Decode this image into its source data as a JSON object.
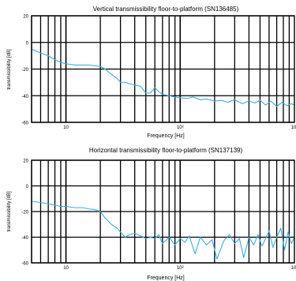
{
  "chart_data": [
    {
      "type": "line",
      "title": "Vertical transmissibility floor-to-platform (SN136485)",
      "xlabel": "Frequency [Hz]",
      "ylabel": "transmissibility [dB]",
      "x_scale": "log",
      "xlim": [
        5,
        1000
      ],
      "ylim": [
        -60,
        20
      ],
      "x_ticks": [
        10,
        100,
        1000
      ],
      "x_tick_labels": [
        "10",
        "10²",
        "10³"
      ],
      "y_ticks": [
        20,
        0,
        -20,
        -40,
        -60
      ],
      "y_tick_labels": [
        "20",
        "0",
        "-20",
        "-40",
        "-60"
      ],
      "grid": true,
      "series_color": "#3aaee0",
      "series": [
        {
          "x": [
            5,
            6,
            7,
            8,
            9,
            10,
            12,
            14,
            16,
            18,
            20,
            22,
            25,
            28,
            30,
            33,
            36,
            40,
            45,
            50,
            55,
            60,
            65,
            70,
            80,
            90,
            100,
            115,
            130,
            150,
            170,
            200,
            230,
            260,
            300,
            350,
            400,
            450,
            500,
            560,
            620,
            700,
            780,
            860,
            940,
            1000
          ],
          "y": [
            -5,
            -8,
            -10,
            -13,
            -15,
            -16,
            -17,
            -17,
            -17,
            -17.5,
            -18,
            -20,
            -24,
            -27,
            -30,
            -30,
            -31,
            -32,
            -33,
            -38,
            -38,
            -34,
            -37,
            -39,
            -40,
            -41,
            -41.5,
            -42,
            -41,
            -43,
            -42.5,
            -44,
            -43.5,
            -45,
            -43,
            -46,
            -44,
            -45.5,
            -43.5,
            -47,
            -44,
            -48,
            -45,
            -47.5,
            -46,
            -47
          ]
        }
      ]
    },
    {
      "type": "line",
      "title": "Horizontal transmissibility floor-to-platform (SN137139)",
      "xlabel": "Frequency [Hz]",
      "ylabel": "transmissibility [dB]",
      "x_scale": "log",
      "xlim": [
        5,
        1000
      ],
      "ylim": [
        -60,
        20
      ],
      "x_ticks": [
        10,
        100,
        1000
      ],
      "x_tick_labels": [
        "10",
        "10²",
        "10³"
      ],
      "y_ticks": [
        20,
        0,
        -20,
        -40,
        -60
      ],
      "y_tick_labels": [
        "20",
        "0",
        "-20",
        "-40",
        "-60"
      ],
      "grid": true,
      "series_color": "#3aaee0",
      "series": [
        {
          "x": [
            5,
            6,
            7,
            8,
            9,
            10,
            12,
            14,
            16,
            18,
            20,
            22,
            25,
            28,
            30,
            33,
            36,
            40,
            45,
            50,
            55,
            60,
            65,
            70,
            80,
            90,
            100,
            110,
            120,
            135,
            150,
            170,
            190,
            210,
            240,
            270,
            300,
            330,
            360,
            400,
            440,
            480,
            520,
            560,
            600,
            650,
            700,
            760,
            820,
            880,
            940,
            1000
          ],
          "y": [
            -12,
            -13,
            -14,
            -15,
            -16,
            -16,
            -17,
            -17,
            -18,
            -18.5,
            -20,
            -25,
            -30,
            -33,
            -36,
            -40,
            -38,
            -37,
            -39,
            -41,
            -40,
            -41,
            -38,
            -45,
            -40,
            -46,
            -41,
            -44,
            -39,
            -53,
            -40,
            -46,
            -42,
            -57,
            -43,
            -38,
            -45,
            -41,
            -56,
            -40,
            -46,
            -38,
            -47,
            -41,
            -35,
            -48,
            -40,
            -33,
            -50,
            -36,
            -45,
            -40
          ]
        }
      ]
    }
  ]
}
